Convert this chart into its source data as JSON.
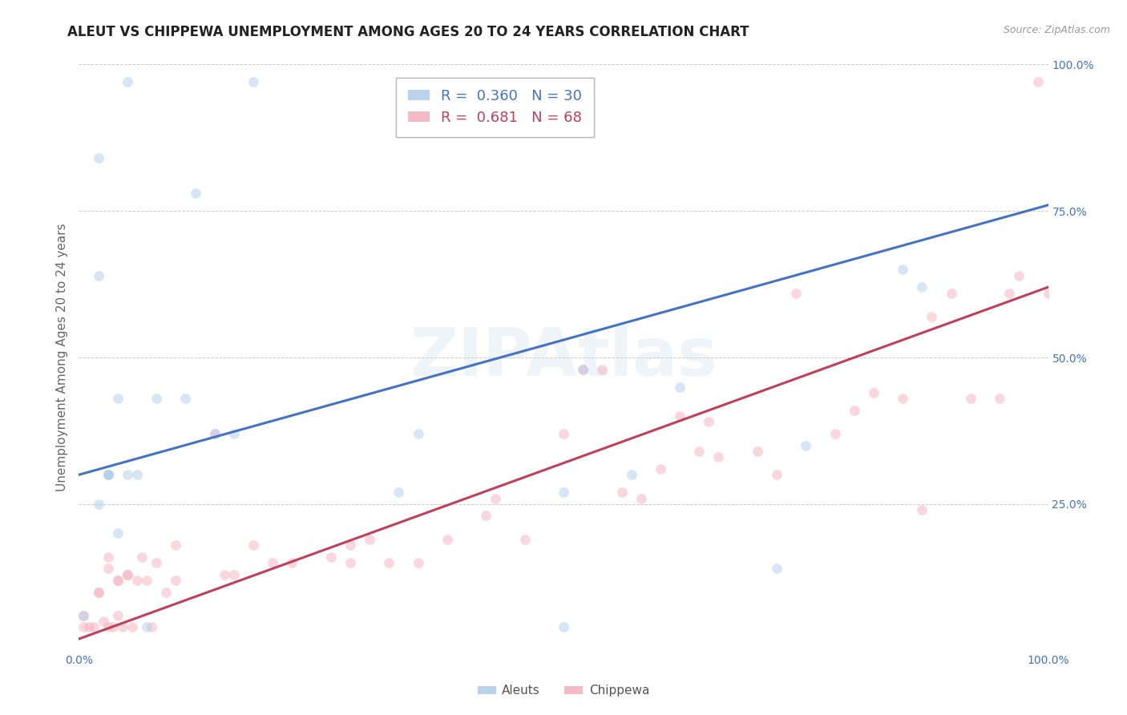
{
  "title": "ALEUT VS CHIPPEWA UNEMPLOYMENT AMONG AGES 20 TO 24 YEARS CORRELATION CHART",
  "source": "Source: ZipAtlas.com",
  "ylabel": "Unemployment Among Ages 20 to 24 years",
  "xlim": [
    0.0,
    1.0
  ],
  "ylim": [
    0.0,
    1.0
  ],
  "xticks": [
    0.0,
    0.25,
    0.5,
    0.75,
    1.0
  ],
  "xticklabels": [
    "0.0%",
    "",
    "",
    "",
    "100.0%"
  ],
  "right_yticks": [
    0.25,
    0.5,
    0.75,
    1.0
  ],
  "right_yticklabels": [
    "25.0%",
    "50.0%",
    "75.0%",
    "100.0%"
  ],
  "aleut_color": "#a8c8e8",
  "chippewa_color": "#f4a8b8",
  "aleut_line_color": "#4472c4",
  "chippewa_line_color": "#c0405a",
  "aleut_r": 0.36,
  "aleut_n": 30,
  "chippewa_r": 0.681,
  "chippewa_n": 68,
  "aleut_x": [
    0.005,
    0.02,
    0.05,
    0.12,
    0.18,
    0.02,
    0.02,
    0.03,
    0.03,
    0.04,
    0.05,
    0.06,
    0.07,
    0.08,
    0.11,
    0.14,
    0.16,
    0.35,
    0.5,
    0.52,
    0.57,
    0.62,
    0.72,
    0.75,
    0.85,
    0.87,
    0.5,
    0.33,
    0.03,
    0.04
  ],
  "aleut_y": [
    0.06,
    0.84,
    0.97,
    0.78,
    0.97,
    0.64,
    0.25,
    0.3,
    0.3,
    0.43,
    0.3,
    0.3,
    0.04,
    0.43,
    0.43,
    0.37,
    0.37,
    0.37,
    0.27,
    0.48,
    0.3,
    0.45,
    0.14,
    0.35,
    0.65,
    0.62,
    0.04,
    0.27,
    0.3,
    0.2
  ],
  "chippewa_x": [
    0.005,
    0.005,
    0.01,
    0.015,
    0.02,
    0.02,
    0.025,
    0.03,
    0.03,
    0.03,
    0.035,
    0.04,
    0.04,
    0.04,
    0.045,
    0.05,
    0.05,
    0.055,
    0.06,
    0.065,
    0.07,
    0.075,
    0.08,
    0.09,
    0.1,
    0.1,
    0.14,
    0.15,
    0.16,
    0.18,
    0.2,
    0.22,
    0.26,
    0.28,
    0.28,
    0.3,
    0.32,
    0.35,
    0.38,
    0.42,
    0.43,
    0.46,
    0.5,
    0.52,
    0.54,
    0.56,
    0.58,
    0.6,
    0.62,
    0.64,
    0.65,
    0.66,
    0.7,
    0.72,
    0.74,
    0.78,
    0.8,
    0.82,
    0.85,
    0.87,
    0.88,
    0.9,
    0.92,
    0.95,
    0.96,
    0.97,
    0.99,
    1.0
  ],
  "chippewa_y": [
    0.04,
    0.06,
    0.04,
    0.04,
    0.1,
    0.1,
    0.05,
    0.04,
    0.14,
    0.16,
    0.04,
    0.06,
    0.12,
    0.12,
    0.04,
    0.13,
    0.13,
    0.04,
    0.12,
    0.16,
    0.12,
    0.04,
    0.15,
    0.1,
    0.12,
    0.18,
    0.37,
    0.13,
    0.13,
    0.18,
    0.15,
    0.15,
    0.16,
    0.15,
    0.18,
    0.19,
    0.15,
    0.15,
    0.19,
    0.23,
    0.26,
    0.19,
    0.37,
    0.48,
    0.48,
    0.27,
    0.26,
    0.31,
    0.4,
    0.34,
    0.39,
    0.33,
    0.34,
    0.3,
    0.61,
    0.37,
    0.41,
    0.44,
    0.43,
    0.24,
    0.57,
    0.61,
    0.43,
    0.43,
    0.61,
    0.64,
    0.97,
    0.61
  ],
  "aleut_line_x0": 0.0,
  "aleut_line_y0": 0.3,
  "aleut_line_x1": 1.0,
  "aleut_line_y1": 0.76,
  "chippewa_line_x0": 0.0,
  "chippewa_line_y0": 0.02,
  "chippewa_line_x1": 1.0,
  "chippewa_line_y1": 0.62,
  "background_color": "#ffffff",
  "grid_color": "#cccccc",
  "marker_size": 85,
  "marker_alpha": 0.45,
  "line_width": 2.2,
  "title_color": "#222222",
  "tick_color": "#4472c4",
  "ylabel_color": "#666666"
}
